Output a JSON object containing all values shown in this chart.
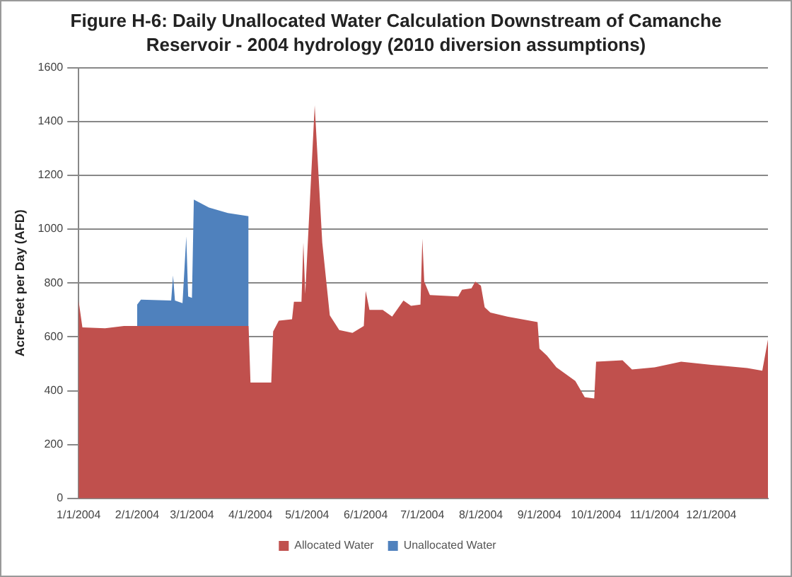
{
  "chart_data": {
    "type": "area",
    "title": "Figure H-6: Daily Unallocated Water Calculation Downstream of Camanche Reservoir - 2004 hydrology (2010 diversion assumptions)",
    "ylabel": "Acre-Feet per Day (AFD)",
    "stacked": true,
    "grid": "y",
    "legend": "bottom",
    "x": [
      "2004-01-01",
      "2004-01-03",
      "2004-01-15",
      "2004-01-25",
      "2004-01-31",
      "2004-02-01",
      "2004-02-03",
      "2004-02-19",
      "2004-02-20",
      "2004-02-21",
      "2004-02-25",
      "2004-02-27",
      "2004-02-28",
      "2004-03-01",
      "2004-03-02",
      "2004-03-10",
      "2004-03-20",
      "2004-03-31",
      "2004-04-01",
      "2004-04-12",
      "2004-04-13",
      "2004-04-16",
      "2004-04-23",
      "2004-04-24",
      "2004-04-28",
      "2004-04-29",
      "2004-04-30",
      "2004-05-05",
      "2004-05-09",
      "2004-05-13",
      "2004-05-18",
      "2004-05-25",
      "2004-05-31",
      "2004-06-01",
      "2004-06-03",
      "2004-06-10",
      "2004-06-15",
      "2004-06-21",
      "2004-06-25",
      "2004-06-30",
      "2004-07-01",
      "2004-07-02",
      "2004-07-05",
      "2004-07-20",
      "2004-07-22",
      "2004-07-27",
      "2004-07-29",
      "2004-08-01",
      "2004-08-03",
      "2004-08-06",
      "2004-08-15",
      "2004-08-31",
      "2004-09-01",
      "2004-09-05",
      "2004-09-10",
      "2004-09-20",
      "2004-09-25",
      "2004-09-30",
      "2004-10-01",
      "2004-10-15",
      "2004-10-20",
      "2004-11-01",
      "2004-11-15",
      "2004-12-01",
      "2004-12-20",
      "2004-12-28",
      "2004-12-31"
    ],
    "series": [
      {
        "name": "Allocated Water",
        "color": "#c0504d",
        "values": [
          734,
          635,
          632,
          640,
          640,
          640,
          640,
          640,
          640,
          640,
          640,
          640,
          640,
          640,
          640,
          640,
          640,
          640,
          430,
          430,
          620,
          660,
          665,
          730,
          730,
          950,
          760,
          1460,
          950,
          680,
          625,
          615,
          640,
          770,
          700,
          700,
          675,
          735,
          715,
          720,
          965,
          805,
          755,
          750,
          775,
          780,
          805,
          790,
          710,
          690,
          675,
          655,
          556,
          530,
          487,
          436,
          376,
          371,
          508,
          513,
          479,
          487,
          508,
          496,
          484,
          474,
          590
        ]
      },
      {
        "name": "Unallocated Water",
        "color": "#4f81bd",
        "values": [
          null,
          null,
          null,
          null,
          null,
          80,
          98,
          95,
          188,
          95,
          85,
          333,
          110,
          105,
          470,
          440,
          420,
          408,
          null,
          null,
          null,
          null,
          null,
          null,
          null,
          null,
          null,
          null,
          null,
          null,
          null,
          null,
          null,
          null,
          null,
          null,
          null,
          null,
          null,
          null,
          null,
          null,
          null,
          null,
          null,
          null,
          null,
          null,
          null,
          null,
          null,
          null,
          null,
          null,
          null,
          null,
          null,
          null,
          null,
          null,
          null,
          null,
          null,
          null,
          null,
          null,
          null
        ]
      }
    ],
    "xlim": [
      "2004-01-01",
      "2004-12-31"
    ],
    "xticks": [
      {
        "value": "2004-01-01",
        "label": "1/1/2004"
      },
      {
        "value": "2004-02-01",
        "label": "2/1/2004"
      },
      {
        "value": "2004-03-01",
        "label": "3/1/2004"
      },
      {
        "value": "2004-04-01",
        "label": "4/1/2004"
      },
      {
        "value": "2004-05-01",
        "label": "5/1/2004"
      },
      {
        "value": "2004-06-01",
        "label": "6/1/2004"
      },
      {
        "value": "2004-07-01",
        "label": "7/1/2004"
      },
      {
        "value": "2004-08-01",
        "label": "8/1/2004"
      },
      {
        "value": "2004-09-01",
        "label": "9/1/2004"
      },
      {
        "value": "2004-10-01",
        "label": "10/1/2004"
      },
      {
        "value": "2004-11-01",
        "label": "11/1/2004"
      },
      {
        "value": "2004-12-01",
        "label": "12/1/2004"
      }
    ],
    "ylim": [
      0,
      1600
    ],
    "yticks": [
      0,
      200,
      400,
      600,
      800,
      1000,
      1200,
      1400,
      1600
    ]
  }
}
